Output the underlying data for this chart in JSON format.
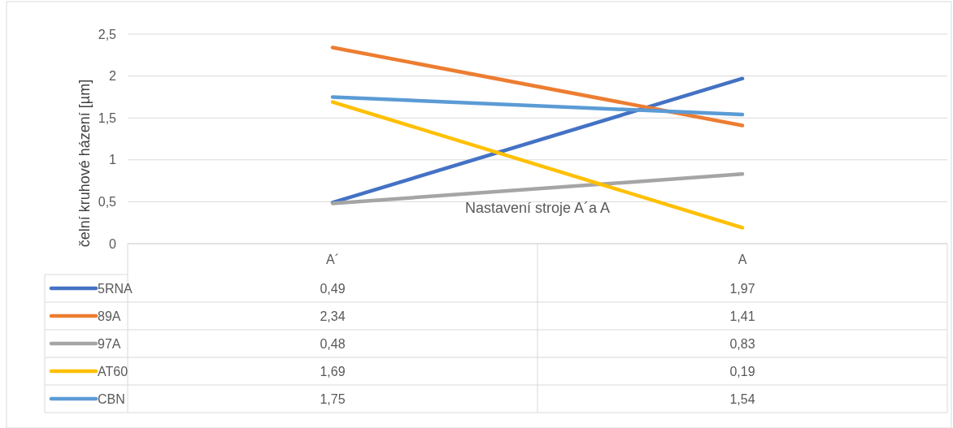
{
  "chart_data": {
    "type": "line",
    "xlabel": "Nastavení stroje A´a A",
    "ylabel": "čelní kruhové házení [µm]",
    "categories": [
      "A´",
      "A"
    ],
    "series": [
      {
        "name": "5RNA",
        "color": "#4472c4",
        "values": [
          0.49,
          1.97
        ],
        "value_labels": [
          "0,49",
          "1,97"
        ]
      },
      {
        "name": "89A",
        "color": "#ed7d31",
        "values": [
          2.34,
          1.41
        ],
        "value_labels": [
          "2,34",
          "1,41"
        ]
      },
      {
        "name": "97A",
        "color": "#a5a5a5",
        "values": [
          0.48,
          0.83
        ],
        "value_labels": [
          "0,48",
          "0,83"
        ]
      },
      {
        "name": "AT60",
        "color": "#ffc000",
        "values": [
          1.69,
          0.19
        ],
        "value_labels": [
          "1,69",
          "0,19"
        ]
      },
      {
        "name": "CBN",
        "color": "#5b9bd5",
        "values": [
          1.75,
          1.54
        ],
        "value_labels": [
          "1,75",
          "1,54"
        ]
      }
    ],
    "ylim": [
      0,
      2.5
    ],
    "yticks": [
      0,
      {
        "value": 0.5,
        "label": "0,5"
      },
      1,
      {
        "value": 1.5,
        "label": "1,5"
      },
      2,
      {
        "value": 2.5,
        "label": "2,5"
      }
    ],
    "grid": "y",
    "legend": "bottom",
    "marker": "none",
    "line_style": "solid"
  }
}
